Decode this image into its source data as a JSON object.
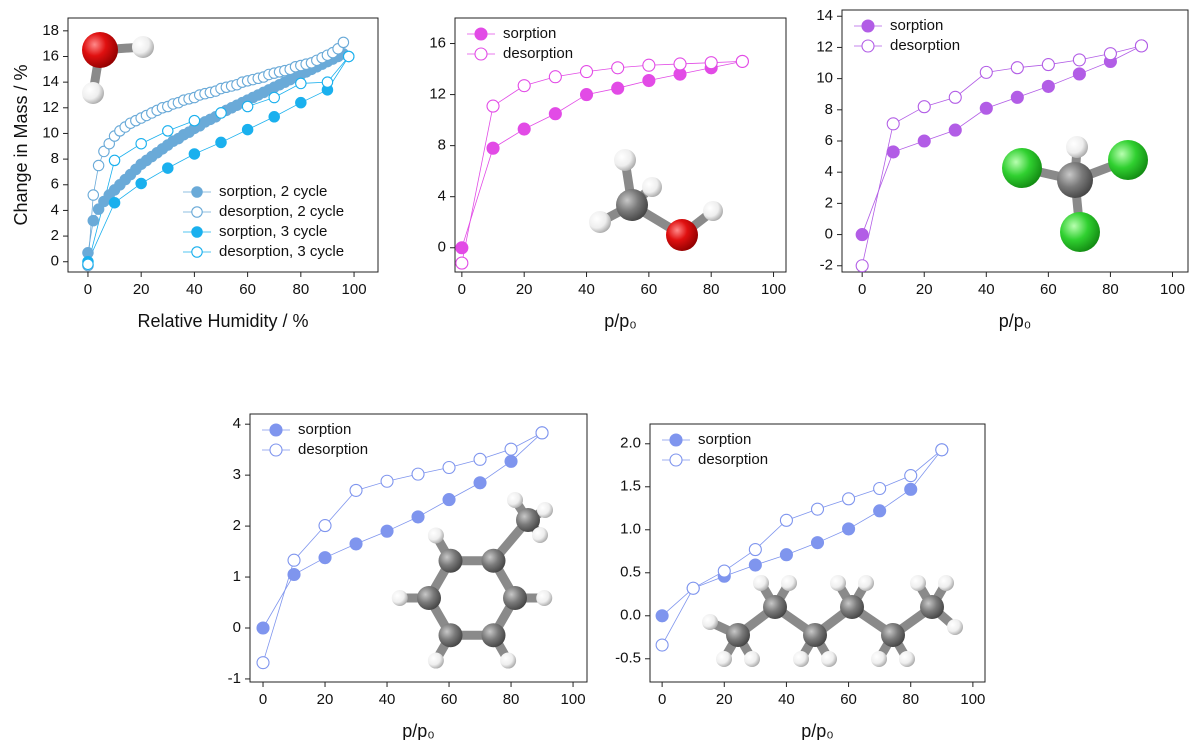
{
  "chart_data": [
    {
      "type": "line",
      "x_label": "Relative Humidity / %",
      "y_label": "Change in Mass / %",
      "legend": "lower right",
      "xlim": [
        -7.5,
        109
      ],
      "xticks": [
        0,
        20,
        40,
        60,
        80,
        100
      ],
      "ylim": [
        -0.8,
        19
      ],
      "yticks": [
        0,
        2,
        4,
        6,
        8,
        10,
        12,
        14,
        16,
        18
      ],
      "series": [
        {
          "name": "sorption, 2 cycle",
          "color": "#6aaad8",
          "marker_fill": "filled",
          "x": [
            0,
            2,
            4,
            6,
            8,
            10,
            12,
            14,
            16,
            18,
            20,
            22,
            24,
            26,
            28,
            30,
            32,
            34,
            36,
            38,
            40,
            42,
            44,
            46,
            48,
            50,
            52,
            54,
            56,
            58,
            60,
            62,
            64,
            66,
            68,
            70,
            72,
            74,
            76,
            78,
            80,
            82,
            84,
            86,
            88,
            90,
            92,
            94,
            96
          ],
          "values": [
            0.7,
            3.2,
            4.1,
            4.7,
            5.2,
            5.6,
            6.0,
            6.4,
            6.8,
            7.2,
            7.6,
            7.9,
            8.2,
            8.5,
            8.8,
            9.1,
            9.4,
            9.6,
            9.9,
            10.1,
            10.4,
            10.6,
            10.9,
            11.1,
            11.3,
            11.6,
            11.8,
            12.0,
            12.2,
            12.4,
            12.6,
            12.8,
            13.0,
            13.2,
            13.4,
            13.6,
            13.8,
            14.0,
            14.2,
            14.4,
            14.6,
            14.8,
            15.0,
            15.2,
            15.4,
            15.6,
            15.8,
            16.0,
            16.2
          ]
        },
        {
          "name": "desorption, 2 cycle",
          "color": "#6aaad8",
          "marker_fill": "open",
          "x": [
            0,
            2,
            4,
            6,
            8,
            10,
            12,
            14,
            16,
            18,
            20,
            22,
            24,
            26,
            28,
            30,
            32,
            34,
            36,
            38,
            40,
            42,
            44,
            46,
            48,
            50,
            52,
            54,
            56,
            58,
            60,
            62,
            64,
            66,
            68,
            70,
            72,
            74,
            76,
            78,
            80,
            82,
            84,
            86,
            88,
            90,
            92,
            94,
            96
          ],
          "values": [
            -0.3,
            5.2,
            7.5,
            8.6,
            9.2,
            9.8,
            10.2,
            10.5,
            10.8,
            11.0,
            11.2,
            11.4,
            11.6,
            11.8,
            12.0,
            12.1,
            12.3,
            12.4,
            12.6,
            12.7,
            12.8,
            13.0,
            13.1,
            13.2,
            13.3,
            13.5,
            13.6,
            13.7,
            13.8,
            14.0,
            14.1,
            14.2,
            14.3,
            14.4,
            14.6,
            14.7,
            14.8,
            14.9,
            15.0,
            15.2,
            15.3,
            15.4,
            15.5,
            15.7,
            15.9,
            16.1,
            16.3,
            16.6,
            17.1
          ]
        },
        {
          "name": "sorption, 3 cycle",
          "color": "#1ab0ee",
          "marker_fill": "filled",
          "x": [
            0,
            10,
            20,
            30,
            40,
            50,
            60,
            70,
            80,
            90,
            98
          ],
          "values": [
            0,
            4.6,
            6.1,
            7.3,
            8.4,
            9.3,
            10.3,
            11.3,
            12.4,
            13.4,
            16.0
          ]
        },
        {
          "name": "desorption, 3 cycle",
          "color": "#1ab0ee",
          "marker_fill": "open",
          "x": [
            0,
            10,
            20,
            30,
            40,
            50,
            60,
            70,
            80,
            90,
            98
          ],
          "values": [
            -0.2,
            7.9,
            9.2,
            10.2,
            11.0,
            11.6,
            12.1,
            12.8,
            13.9,
            14.0,
            16.0
          ]
        }
      ]
    },
    {
      "type": "line",
      "x_label": "p/p₀",
      "legend": "upper left",
      "xlim": [
        -2.2,
        104
      ],
      "xticks": [
        0,
        20,
        40,
        60,
        80,
        100
      ],
      "ylim": [
        -1.9,
        18
      ],
      "yticks": [
        0,
        4,
        8,
        12,
        16
      ],
      "series": [
        {
          "name": "sorption",
          "color": "#e24be6",
          "marker_fill": "filled",
          "x": [
            0,
            10,
            20,
            30,
            40,
            50,
            60,
            70,
            80,
            90
          ],
          "values": [
            0,
            7.8,
            9.3,
            10.5,
            12.0,
            12.5,
            13.1,
            13.6,
            14.1,
            14.6
          ]
        },
        {
          "name": "desorption",
          "color": "#e24be6",
          "marker_fill": "open",
          "x": [
            0,
            10,
            20,
            30,
            40,
            50,
            60,
            70,
            80,
            90
          ],
          "values": [
            -1.2,
            11.1,
            12.7,
            13.4,
            13.8,
            14.1,
            14.3,
            14.4,
            14.5,
            14.6
          ]
        }
      ]
    },
    {
      "type": "line",
      "x_label": "p/p₀",
      "legend": "upper left",
      "xlim": [
        -6.5,
        105
      ],
      "xticks": [
        0,
        20,
        40,
        60,
        80,
        100
      ],
      "ylim": [
        -2.4,
        14.4
      ],
      "yticks": [
        -2,
        0,
        2,
        4,
        6,
        8,
        10,
        12,
        14
      ],
      "series": [
        {
          "name": "sorption",
          "color": "#b25de6",
          "marker_fill": "filled",
          "x": [
            0,
            10,
            20,
            30,
            40,
            50,
            60,
            70,
            80,
            90
          ],
          "values": [
            0,
            5.3,
            6.0,
            6.7,
            8.1,
            8.8,
            9.5,
            10.3,
            11.1,
            12.1
          ]
        },
        {
          "name": "desorption",
          "color": "#b25de6",
          "marker_fill": "open",
          "x": [
            0,
            10,
            20,
            30,
            40,
            50,
            60,
            70,
            80,
            90
          ],
          "values": [
            -2.0,
            7.1,
            8.2,
            8.8,
            10.4,
            10.7,
            10.9,
            11.2,
            11.6,
            12.1
          ]
        }
      ]
    },
    {
      "type": "line",
      "x_label": "p/p₀",
      "legend": "upper left",
      "xlim": [
        -4.2,
        104.5
      ],
      "xticks": [
        0,
        20,
        40,
        60,
        80,
        100
      ],
      "ylim": [
        -1.06,
        4.2
      ],
      "yticks": [
        -1,
        0,
        1,
        2,
        3,
        4
      ],
      "series": [
        {
          "name": "sorption",
          "color": "#7f95ee",
          "marker_fill": "filled",
          "x": [
            0,
            10,
            20,
            30,
            40,
            50,
            60,
            70,
            80,
            90
          ],
          "values": [
            0,
            1.05,
            1.38,
            1.65,
            1.9,
            2.18,
            2.52,
            2.85,
            3.27,
            3.83
          ]
        },
        {
          "name": "desorption",
          "color": "#7f95ee",
          "marker_fill": "open",
          "x": [
            0,
            10,
            20,
            30,
            40,
            50,
            60,
            70,
            80,
            90
          ],
          "values": [
            -0.68,
            1.33,
            2.01,
            2.7,
            2.88,
            3.02,
            3.15,
            3.31,
            3.51,
            3.83
          ]
        }
      ]
    },
    {
      "type": "line",
      "x_label": "p/p₀",
      "legend": "upper left",
      "xlim": [
        -3.9,
        103.9
      ],
      "xticks": [
        0,
        20,
        40,
        60,
        80,
        100
      ],
      "ylim": [
        -0.77,
        2.23
      ],
      "yticks": [
        -0.5,
        {
          "value": 0,
          "label": "0.0"
        },
        0.5,
        {
          "value": 1,
          "label": "1.0"
        },
        1.5,
        {
          "value": 2,
          "label": "2.0"
        }
      ],
      "series": [
        {
          "name": "sorption",
          "color": "#7f95ee",
          "marker_fill": "filled",
          "x": [
            0,
            10,
            20,
            30,
            40,
            50,
            60,
            70,
            80,
            90
          ],
          "values": [
            0,
            0.32,
            0.46,
            0.59,
            0.71,
            0.85,
            1.01,
            1.22,
            1.47,
            1.93
          ]
        },
        {
          "name": "desorption",
          "color": "#7f95ee",
          "marker_fill": "open",
          "x": [
            0,
            10,
            20,
            30,
            40,
            50,
            60,
            70,
            80,
            90
          ],
          "values": [
            -0.34,
            0.32,
            0.52,
            0.77,
            1.11,
            1.24,
            1.36,
            1.48,
            1.63,
            1.93
          ]
        }
      ]
    }
  ]
}
